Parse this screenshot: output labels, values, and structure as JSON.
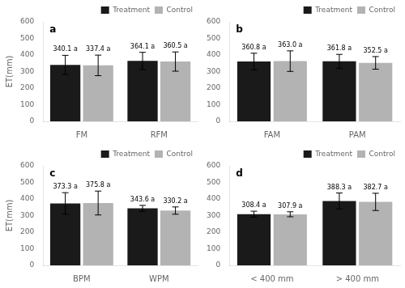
{
  "chart_data": [
    {
      "type": "bar",
      "title": "a",
      "categories": [
        "FM",
        "RFM"
      ],
      "series": [
        {
          "name": "Treatment",
          "color": "#1a1a1a",
          "values": [
            340.1,
            364.1
          ],
          "errors": [
            58,
            52
          ],
          "value_labels": [
            "340.1 a",
            "364.1 a"
          ]
        },
        {
          "name": "Control",
          "color": "#b3b3b3",
          "values": [
            337.4,
            360.5
          ],
          "errors": [
            62,
            58
          ],
          "value_labels": [
            "337.4 a",
            "360.5 a"
          ]
        }
      ],
      "ylim": [
        0,
        600
      ],
      "yticks": [
        0,
        100,
        200,
        300,
        400,
        500,
        600
      ],
      "ylabel": "ET(mm)",
      "grid": false,
      "legend": "upper right",
      "data_labels": true
    },
    {
      "type": "bar",
      "title": "b",
      "categories": [
        "FAM",
        "PAM"
      ],
      "series": [
        {
          "name": "Treatment",
          "color": "#1a1a1a",
          "values": [
            360.8,
            361.8
          ],
          "errors": [
            50,
            42
          ],
          "value_labels": [
            "360.8 a",
            "361.8 a"
          ]
        },
        {
          "name": "Control",
          "color": "#b3b3b3",
          "values": [
            363.0,
            352.5
          ],
          "errors": [
            62,
            38
          ],
          "value_labels": [
            "363.0 a",
            "352.5 a"
          ]
        }
      ],
      "ylim": [
        0,
        600
      ],
      "yticks": [
        0,
        100,
        200,
        300,
        400,
        500,
        600
      ],
      "grid": false,
      "legend": "upper right",
      "data_labels": true
    },
    {
      "type": "bar",
      "title": "c",
      "categories": [
        "BPM",
        "WPM"
      ],
      "series": [
        {
          "name": "Treatment",
          "color": "#1a1a1a",
          "values": [
            373.3,
            343.6
          ],
          "errors": [
            65,
            18
          ],
          "value_labels": [
            "373.3 a",
            "343.6 a"
          ]
        },
        {
          "name": "Control",
          "color": "#b3b3b3",
          "values": [
            375.8,
            330.2
          ],
          "errors": [
            72,
            22
          ],
          "value_labels": [
            "375.8 a",
            "330.2 a"
          ]
        }
      ],
      "ylim": [
        0,
        600
      ],
      "yticks": [
        0,
        100,
        200,
        300,
        400,
        500,
        600
      ],
      "ylabel": "ET(mm)",
      "grid": false,
      "legend": "upper right",
      "data_labels": true
    },
    {
      "type": "bar",
      "title": "d",
      "categories": [
        "< 400 mm",
        "> 400 mm"
      ],
      "series": [
        {
          "name": "Treatment",
          "color": "#1a1a1a",
          "values": [
            308.4,
            388.3
          ],
          "errors": [
            18,
            48
          ],
          "value_labels": [
            "308.4 a",
            "388.3 a"
          ]
        },
        {
          "name": "Control",
          "color": "#b3b3b3",
          "values": [
            307.9,
            382.7
          ],
          "errors": [
            15,
            52
          ],
          "value_labels": [
            "307.9 a",
            "382.7 a"
          ]
        }
      ],
      "ylim": [
        0,
        600
      ],
      "yticks": [
        0,
        100,
        200,
        300,
        400,
        500,
        600
      ],
      "grid": false,
      "legend": "upper right",
      "data_labels": true
    }
  ]
}
